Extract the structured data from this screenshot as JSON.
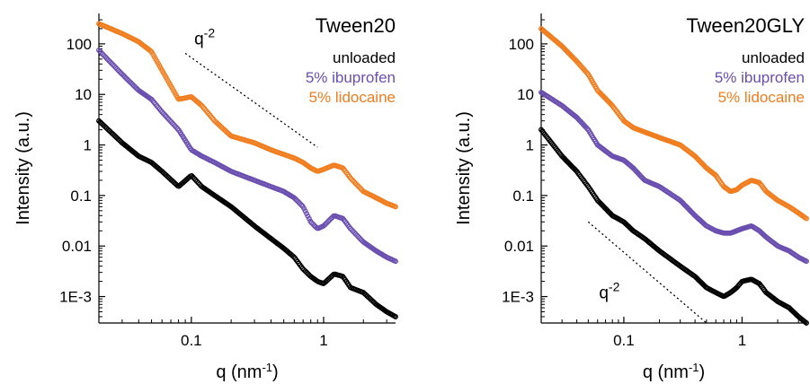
{
  "colors": {
    "unloaded": "#000000",
    "ibuprofen": "#6a4fb0",
    "lidocaine": "#f07d1e",
    "axis": "#000000",
    "guide": "#000000"
  },
  "chart_data": [
    {
      "type": "scatter",
      "title": "Tween20",
      "xlabel": "q (nm",
      "xlabel_sup": "-1",
      "xlabel_end": ")",
      "ylabel": "Intensity (a.u.)",
      "xscale": "log",
      "yscale": "log",
      "xlim": [
        0.02,
        3.5
      ],
      "ylim": [
        0.0003,
        400
      ],
      "x_ticks": [
        0.1,
        1
      ],
      "x_tick_labels": [
        "0.1",
        "1"
      ],
      "y_ticks": [
        100,
        10,
        1,
        0.1,
        0.01,
        0.001
      ],
      "y_tick_labels": [
        "100",
        "10",
        "1",
        "0.1",
        "0.01",
        "1E-3"
      ],
      "legend_position": "top-right",
      "guide": {
        "label": "q",
        "label_sup": "-2",
        "x": [
          0.09,
          0.9
        ],
        "y": [
          65,
          0.9
        ]
      },
      "series": [
        {
          "name": "unloaded",
          "color_key": "unloaded",
          "x": [
            0.02,
            0.03,
            0.04,
            0.05,
            0.06,
            0.08,
            0.1,
            0.12,
            0.15,
            0.2,
            0.3,
            0.4,
            0.5,
            0.6,
            0.7,
            0.8,
            0.9,
            1.0,
            1.2,
            1.4,
            1.6,
            2.0,
            2.5,
            3.0,
            3.5
          ],
          "y": [
            3,
            1.1,
            0.6,
            0.45,
            0.3,
            0.15,
            0.25,
            0.15,
            0.1,
            0.06,
            0.025,
            0.014,
            0.009,
            0.006,
            0.0035,
            0.0025,
            0.002,
            0.0018,
            0.0028,
            0.0025,
            0.0015,
            0.0012,
            0.0007,
            0.0005,
            0.0004
          ]
        },
        {
          "name": "5% ibuprofen",
          "color_key": "ibuprofen",
          "x": [
            0.02,
            0.03,
            0.04,
            0.05,
            0.06,
            0.08,
            0.1,
            0.12,
            0.15,
            0.2,
            0.3,
            0.4,
            0.5,
            0.6,
            0.7,
            0.8,
            0.9,
            1.0,
            1.2,
            1.4,
            1.6,
            2.0,
            2.5,
            3.0,
            3.5
          ],
          "y": [
            75,
            25,
            12,
            8,
            4.5,
            2,
            0.8,
            0.6,
            0.45,
            0.3,
            0.2,
            0.15,
            0.12,
            0.09,
            0.06,
            0.03,
            0.022,
            0.025,
            0.04,
            0.035,
            0.022,
            0.012,
            0.008,
            0.006,
            0.005
          ]
        },
        {
          "name": "5% lidocaine",
          "color_key": "lidocaine",
          "x": [
            0.02,
            0.03,
            0.04,
            0.05,
            0.06,
            0.08,
            0.1,
            0.12,
            0.15,
            0.2,
            0.3,
            0.4,
            0.5,
            0.6,
            0.7,
            0.8,
            0.9,
            1.0,
            1.2,
            1.4,
            1.6,
            2.0,
            2.5,
            3.0,
            3.5
          ],
          "y": [
            250,
            160,
            110,
            70,
            30,
            8,
            9,
            6,
            3,
            1.5,
            1.1,
            0.8,
            0.65,
            0.55,
            0.45,
            0.35,
            0.3,
            0.33,
            0.4,
            0.35,
            0.22,
            0.12,
            0.09,
            0.07,
            0.06
          ]
        }
      ]
    },
    {
      "type": "scatter",
      "title": "Tween20GLY",
      "xlabel": "q (nm",
      "xlabel_sup": "-1",
      "xlabel_end": ")",
      "ylabel": "Intensity (a.u.)",
      "xscale": "log",
      "yscale": "log",
      "xlim": [
        0.02,
        3.5
      ],
      "ylim": [
        0.0003,
        400
      ],
      "x_ticks": [
        0.1,
        1
      ],
      "x_tick_labels": [
        "0.1",
        "1"
      ],
      "y_ticks": [
        100,
        10,
        1,
        0.1,
        0.01,
        0.001
      ],
      "y_tick_labels": [
        "100",
        "10",
        "1",
        "0.1",
        "0.01",
        "1E-3"
      ],
      "legend_position": "top-right",
      "guide": {
        "label": "q",
        "label_sup": "-2",
        "x": [
          0.05,
          0.5
        ],
        "y": [
          0.03,
          0.0003
        ]
      },
      "series": [
        {
          "name": "unloaded",
          "color_key": "unloaded",
          "x": [
            0.02,
            0.03,
            0.04,
            0.05,
            0.06,
            0.08,
            0.1,
            0.12,
            0.15,
            0.2,
            0.3,
            0.4,
            0.5,
            0.6,
            0.7,
            0.8,
            0.9,
            1.0,
            1.2,
            1.4,
            1.6,
            2.0,
            2.5,
            3.0,
            3.5
          ],
          "y": [
            2,
            0.6,
            0.3,
            0.15,
            0.08,
            0.04,
            0.03,
            0.02,
            0.014,
            0.008,
            0.004,
            0.0025,
            0.0015,
            0.0012,
            0.001,
            0.0012,
            0.0015,
            0.002,
            0.0022,
            0.0018,
            0.0012,
            0.0008,
            0.0006,
            0.0004,
            0.0003
          ]
        },
        {
          "name": "5% ibuprofen",
          "color_key": "ibuprofen",
          "x": [
            0.02,
            0.03,
            0.04,
            0.05,
            0.06,
            0.08,
            0.1,
            0.12,
            0.15,
            0.2,
            0.3,
            0.4,
            0.5,
            0.6,
            0.7,
            0.8,
            0.9,
            1.0,
            1.2,
            1.4,
            1.6,
            2.0,
            2.5,
            3.0,
            3.5
          ],
          "y": [
            11,
            6,
            3.5,
            2,
            1,
            0.6,
            0.5,
            0.35,
            0.2,
            0.15,
            0.08,
            0.04,
            0.025,
            0.02,
            0.018,
            0.018,
            0.02,
            0.022,
            0.025,
            0.02,
            0.015,
            0.01,
            0.008,
            0.006,
            0.005
          ]
        },
        {
          "name": "5% lidocaine",
          "color_key": "lidocaine",
          "x": [
            0.02,
            0.03,
            0.04,
            0.05,
            0.06,
            0.08,
            0.1,
            0.12,
            0.15,
            0.2,
            0.3,
            0.4,
            0.5,
            0.6,
            0.7,
            0.8,
            0.9,
            1.0,
            1.2,
            1.4,
            1.6,
            2.0,
            2.5,
            3.0,
            3.5
          ],
          "y": [
            200,
            90,
            45,
            25,
            12,
            6,
            3,
            2.2,
            1.8,
            1.4,
            1,
            0.6,
            0.35,
            0.25,
            0.15,
            0.12,
            0.13,
            0.16,
            0.2,
            0.18,
            0.12,
            0.08,
            0.06,
            0.045,
            0.035
          ]
        }
      ]
    }
  ]
}
